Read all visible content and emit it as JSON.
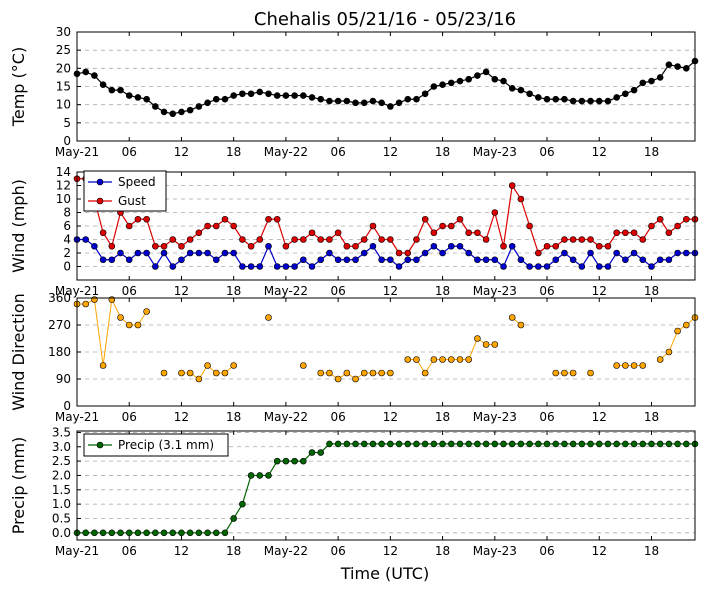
{
  "title": "Chehalis 05/21/16 - 05/23/16",
  "xlabel": "Time (UTC)",
  "chart_data": [
    {
      "type": "line",
      "ylabel": "Temp (°C)",
      "ylim": [
        0,
        30
      ],
      "yticks": [
        0,
        5,
        10,
        15,
        20,
        25,
        30
      ],
      "xlim": [
        0,
        71
      ],
      "x_ticks": [
        0,
        6,
        12,
        18,
        24,
        30,
        36,
        42,
        48,
        54,
        60,
        66
      ],
      "x_tick_labels": [
        "May-21",
        "06",
        "12",
        "18",
        "May-22",
        "06",
        "12",
        "18",
        "May-23",
        "06",
        "12",
        "18"
      ],
      "grid": true,
      "series": [
        {
          "color": "#000000",
          "x": [
            0,
            1,
            2,
            3,
            4,
            5,
            6,
            7,
            8,
            9,
            10,
            11,
            12,
            13,
            14,
            15,
            16,
            17,
            18,
            19,
            20,
            21,
            22,
            23,
            24,
            25,
            26,
            27,
            28,
            29,
            30,
            31,
            32,
            33,
            34,
            35,
            36,
            37,
            38,
            39,
            40,
            41,
            42,
            43,
            44,
            45,
            46,
            47,
            48,
            49,
            50,
            51,
            52,
            53,
            54,
            55,
            56,
            57,
            58,
            59,
            60,
            61,
            62,
            63,
            64,
            65,
            66,
            67,
            68,
            69,
            70,
            71
          ],
          "y": [
            18.5,
            19,
            18,
            15.5,
            14,
            14,
            12.5,
            12,
            11.5,
            9.5,
            8,
            7.5,
            8,
            8.5,
            9.5,
            10.5,
            11.5,
            11.5,
            12.5,
            13,
            13,
            13.5,
            13,
            12.5,
            12.5,
            12.5,
            12.5,
            12,
            11.5,
            11,
            11,
            11,
            10.5,
            10.5,
            11,
            10.5,
            9.5,
            10.5,
            11.5,
            11.5,
            13,
            15,
            15.5,
            16,
            16.5,
            17,
            18,
            19,
            17,
            16.5,
            14.5,
            14,
            13,
            12,
            11.5,
            11.5,
            11.5,
            11,
            11,
            11,
            11,
            11,
            12,
            13,
            14,
            16,
            16.5,
            17.5,
            21,
            20.5,
            20,
            22
          ]
        }
      ]
    },
    {
      "type": "line",
      "ylabel": "Wind (mph)",
      "ylim": [
        -2,
        14
      ],
      "yticks": [
        0,
        2,
        4,
        6,
        8,
        10,
        12,
        14
      ],
      "xlim": [
        0,
        71
      ],
      "x_ticks": [
        0,
        6,
        12,
        18,
        24,
        30,
        36,
        42,
        48,
        54,
        60,
        66
      ],
      "x_tick_labels": [
        "May-21",
        "06",
        "12",
        "18",
        "May-22",
        "06",
        "12",
        "18",
        "May-23",
        "06",
        "12",
        "18"
      ],
      "grid": true,
      "legend": "upper-left",
      "series": [
        {
          "name": "Speed",
          "color": "#0000cc",
          "x": [
            0,
            1,
            2,
            3,
            4,
            5,
            6,
            7,
            8,
            9,
            10,
            11,
            12,
            13,
            14,
            15,
            16,
            17,
            18,
            19,
            20,
            21,
            22,
            23,
            24,
            25,
            26,
            27,
            28,
            29,
            30,
            31,
            32,
            33,
            34,
            35,
            36,
            37,
            38,
            39,
            40,
            41,
            42,
            43,
            44,
            45,
            46,
            47,
            48,
            49,
            50,
            51,
            52,
            53,
            54,
            55,
            56,
            57,
            58,
            59,
            60,
            61,
            62,
            63,
            64,
            65,
            66,
            67,
            68,
            69,
            70,
            71
          ],
          "y": [
            4,
            4,
            3,
            1,
            1,
            2,
            1,
            2,
            2,
            0,
            2,
            0,
            1,
            2,
            2,
            2,
            1,
            2,
            2,
            0,
            0,
            0,
            3,
            0,
            0,
            0,
            1,
            0,
            1,
            2,
            1,
            1,
            1,
            2,
            3,
            1,
            1,
            0,
            1,
            1,
            2,
            3,
            2,
            3,
            3,
            2,
            1,
            1,
            1,
            0,
            3,
            1,
            0,
            0,
            0,
            1,
            2,
            1,
            0,
            2,
            0,
            0,
            2,
            1,
            2,
            1,
            0,
            1,
            1,
            2,
            2,
            2
          ]
        },
        {
          "name": "Gust",
          "color": "#dd0000",
          "x": [
            0,
            1,
            2,
            3,
            4,
            5,
            6,
            7,
            8,
            9,
            10,
            11,
            12,
            13,
            14,
            15,
            16,
            17,
            18,
            19,
            20,
            21,
            22,
            23,
            24,
            25,
            26,
            27,
            28,
            29,
            30,
            31,
            32,
            33,
            34,
            35,
            36,
            37,
            38,
            39,
            40,
            41,
            42,
            43,
            44,
            45,
            46,
            47,
            48,
            49,
            50,
            51,
            52,
            53,
            54,
            55,
            56,
            57,
            58,
            59,
            60,
            61,
            62,
            63,
            64,
            65,
            66,
            67,
            68,
            69,
            70,
            71
          ],
          "y": [
            13,
            13,
            10,
            5,
            3,
            8,
            6,
            7,
            7,
            3,
            3,
            4,
            3,
            4,
            5,
            6,
            6,
            7,
            6,
            4,
            3,
            4,
            7,
            7,
            3,
            4,
            4,
            5,
            4,
            4,
            5,
            3,
            3,
            4,
            6,
            4,
            4,
            2,
            2,
            4,
            7,
            5,
            6,
            6,
            7,
            5,
            5,
            4,
            8,
            3,
            12,
            10,
            6,
            2,
            3,
            3,
            4,
            4,
            4,
            4,
            3,
            3,
            5,
            5,
            5,
            4,
            6,
            7,
            5,
            6,
            7,
            7
          ]
        }
      ]
    },
    {
      "type": "scatter",
      "ylabel": "Wind Direction",
      "ylim": [
        0,
        360
      ],
      "yticks": [
        0,
        90,
        180,
        270,
        360
      ],
      "xlim": [
        0,
        71
      ],
      "x_ticks": [
        0,
        6,
        12,
        18,
        24,
        30,
        36,
        42,
        48,
        54,
        60,
        66
      ],
      "x_tick_labels": [
        "May-21",
        "06",
        "12",
        "18",
        "May-22",
        "06",
        "12",
        "18",
        "May-23",
        "06",
        "12",
        "18"
      ],
      "grid": true,
      "series": [
        {
          "color": "#ffa500",
          "x": [
            0,
            1,
            2,
            3,
            4,
            5,
            6,
            7,
            8,
            10,
            12,
            13,
            14,
            15,
            16,
            17,
            18,
            22,
            26,
            28,
            29,
            30,
            31,
            32,
            33,
            34,
            35,
            36,
            38,
            39,
            40,
            41,
            42,
            43,
            44,
            45,
            46,
            47,
            48,
            50,
            51,
            55,
            56,
            57,
            59,
            62,
            63,
            64,
            65,
            67,
            68,
            69,
            70,
            71
          ],
          "y": [
            340,
            340,
            355,
            135,
            355,
            295,
            270,
            270,
            315,
            110,
            110,
            110,
            90,
            135,
            110,
            110,
            135,
            295,
            135,
            110,
            110,
            90,
            110,
            90,
            110,
            110,
            110,
            110,
            155,
            155,
            110,
            155,
            155,
            155,
            155,
            155,
            225,
            205,
            205,
            295,
            270,
            110,
            110,
            110,
            110,
            135,
            135,
            135,
            135,
            155,
            180,
            250,
            270,
            295
          ],
          "connect": false
        }
      ]
    },
    {
      "type": "line",
      "ylabel": "Precip (mm)",
      "ylim": [
        -0.25,
        3.55
      ],
      "yticks": [
        0.0,
        0.5,
        1.0,
        1.5,
        2.0,
        2.5,
        3.0,
        3.5
      ],
      "xlim": [
        0,
        71
      ],
      "x_ticks": [
        0,
        6,
        12,
        18,
        24,
        30,
        36,
        42,
        48,
        54,
        60,
        66
      ],
      "x_tick_labels": [
        "May-21",
        "06",
        "12",
        "18",
        "May-22",
        "06",
        "12",
        "18",
        "May-23",
        "06",
        "12",
        "18"
      ],
      "grid": true,
      "legend": "upper-left",
      "series": [
        {
          "name": "Precip (3.1 mm)",
          "color": "#006400",
          "x": [
            0,
            1,
            2,
            3,
            4,
            5,
            6,
            7,
            8,
            9,
            10,
            11,
            12,
            13,
            14,
            15,
            16,
            17,
            18,
            19,
            20,
            21,
            22,
            23,
            24,
            25,
            26,
            27,
            28,
            29,
            30,
            31,
            32,
            33,
            34,
            35,
            36,
            37,
            38,
            39,
            40,
            41,
            42,
            43,
            44,
            45,
            46,
            47,
            48,
            49,
            50,
            51,
            52,
            53,
            54,
            55,
            56,
            57,
            58,
            59,
            60,
            61,
            62,
            63,
            64,
            65,
            66,
            67,
            68,
            69,
            70,
            71
          ],
          "y": [
            0,
            0,
            0,
            0,
            0,
            0,
            0,
            0,
            0,
            0,
            0,
            0,
            0,
            0,
            0,
            0,
            0,
            0,
            0.5,
            1.0,
            2.0,
            2.0,
            2.0,
            2.5,
            2.5,
            2.5,
            2.5,
            2.8,
            2.8,
            3.1,
            3.1,
            3.1,
            3.1,
            3.1,
            3.1,
            3.1,
            3.1,
            3.1,
            3.1,
            3.1,
            3.1,
            3.1,
            3.1,
            3.1,
            3.1,
            3.1,
            3.1,
            3.1,
            3.1,
            3.1,
            3.1,
            3.1,
            3.1,
            3.1,
            3.1,
            3.1,
            3.1,
            3.1,
            3.1,
            3.1,
            3.1,
            3.1,
            3.1,
            3.1,
            3.1,
            3.1,
            3.1,
            3.1,
            3.1,
            3.1,
            3.1,
            3.1
          ]
        }
      ]
    }
  ]
}
